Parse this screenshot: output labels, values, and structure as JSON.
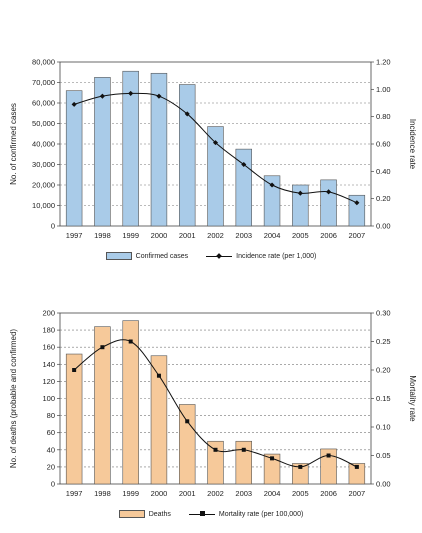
{
  "chart_data": [
    {
      "type": "bar",
      "title": "",
      "xlabel": "",
      "ylabel": "No. of confirmed cases",
      "y2label": "Incidence rate",
      "categories": [
        "1997",
        "1998",
        "1999",
        "2000",
        "2001",
        "2002",
        "2003",
        "2004",
        "2005",
        "2006",
        "2007"
      ],
      "ylim": [
        0,
        80000
      ],
      "y2lim": [
        0.0,
        1.2
      ],
      "yticks": [
        "0",
        "10,000",
        "20,000",
        "30,000",
        "40,000",
        "50,000",
        "60,000",
        "70,000",
        "80,000"
      ],
      "y2ticks": [
        "0.00",
        "0.20",
        "0.40",
        "0.60",
        "0.80",
        "1.00",
        "1.20"
      ],
      "bar_color": "#a9cbe8",
      "series": [
        {
          "name": "Confirmed cases",
          "kind": "bar",
          "axis": "left",
          "values": [
            66000,
            72500,
            75500,
            74500,
            69000,
            48500,
            37500,
            24500,
            20000,
            22500,
            15000
          ]
        },
        {
          "name": "Incidence rate (per 1,000)",
          "kind": "line",
          "axis": "right",
          "marker": "diamond",
          "values": [
            0.89,
            0.95,
            0.97,
            0.95,
            0.82,
            0.61,
            0.45,
            0.3,
            0.24,
            0.25,
            0.17
          ]
        }
      ],
      "grid": true,
      "legend_position": "bottom"
    },
    {
      "type": "bar",
      "title": "",
      "xlabel": "",
      "ylabel": "No. of deaths (probable and confirmed)",
      "y2label": "Mortality rate",
      "categories": [
        "1997",
        "1998",
        "1999",
        "2000",
        "2001",
        "2002",
        "2003",
        "2004",
        "2005",
        "2006",
        "2007"
      ],
      "ylim": [
        0,
        200
      ],
      "y2lim": [
        0.0,
        0.3
      ],
      "yticks": [
        "0",
        "20",
        "40",
        "60",
        "80",
        "100",
        "120",
        "140",
        "160",
        "180",
        "200"
      ],
      "y2ticks": [
        "0.00",
        "0.05",
        "0.10",
        "0.15",
        "0.20",
        "0.25",
        "0.30"
      ],
      "bar_color": "#f6c99a",
      "series": [
        {
          "name": "Deaths",
          "kind": "bar",
          "axis": "left",
          "values": [
            152,
            184,
            191,
            150,
            93,
            50,
            50,
            35,
            24,
            41,
            24
          ]
        },
        {
          "name": "Mortality rate (per 100,000)",
          "kind": "line",
          "axis": "right",
          "marker": "square",
          "values": [
            0.2,
            0.24,
            0.25,
            0.19,
            0.11,
            0.06,
            0.06,
            0.045,
            0.03,
            0.05,
            0.03
          ]
        }
      ],
      "grid": true,
      "legend_position": "bottom"
    }
  ]
}
